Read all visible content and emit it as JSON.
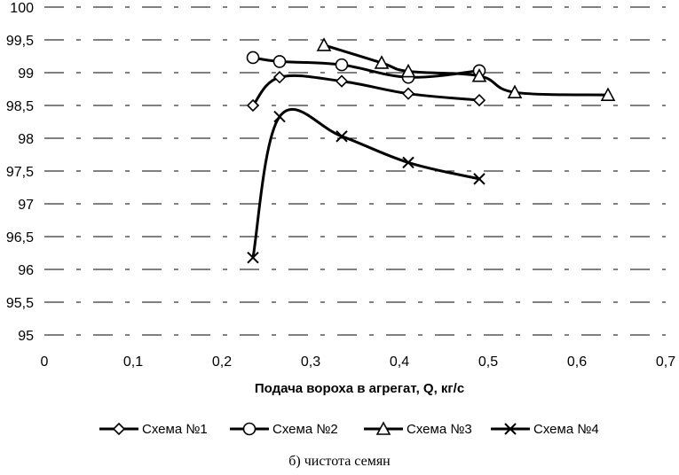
{
  "chart_data": {
    "type": "line",
    "xlabel": "Подача вороха в агрегат, Q, кг/с",
    "ylabel": "",
    "xlim": [
      0,
      0.7
    ],
    "ylim": [
      95,
      100
    ],
    "x_ticks": [
      "0",
      "0,1",
      "0,2",
      "0,3",
      "0,4",
      "0,5",
      "0,6",
      "0,7"
    ],
    "y_ticks": [
      "95",
      "95,5",
      "96",
      "96,5",
      "97",
      "97,5",
      "98",
      "98,5",
      "99",
      "99,5",
      "100"
    ],
    "grid": "dashed horizontal",
    "legend_position": "bottom",
    "series": [
      {
        "name": "Схема №1",
        "marker": "diamond",
        "x": [
          0.235,
          0.265,
          0.335,
          0.41,
          0.49
        ],
        "y": [
          98.5,
          98.93,
          98.87,
          98.68,
          98.58
        ]
      },
      {
        "name": "Схема №2",
        "marker": "circle",
        "x": [
          0.235,
          0.265,
          0.335,
          0.41,
          0.49
        ],
        "y": [
          99.23,
          99.17,
          99.12,
          98.93,
          99.03
        ]
      },
      {
        "name": "Схема №3",
        "marker": "triangle",
        "x": [
          0.315,
          0.38,
          0.41,
          0.49,
          0.53,
          0.635
        ],
        "y": [
          99.42,
          99.15,
          99.02,
          98.95,
          98.7,
          98.66
        ]
      },
      {
        "name": "Схема №4",
        "marker": "x",
        "x": [
          0.235,
          0.265,
          0.335,
          0.41,
          0.49
        ],
        "y": [
          96.18,
          98.33,
          98.03,
          97.63,
          97.38
        ]
      }
    ]
  },
  "caption": "б) чистота семян",
  "colors": {
    "line": "#000000",
    "grid": "#000000",
    "background": "#ffffff"
  }
}
